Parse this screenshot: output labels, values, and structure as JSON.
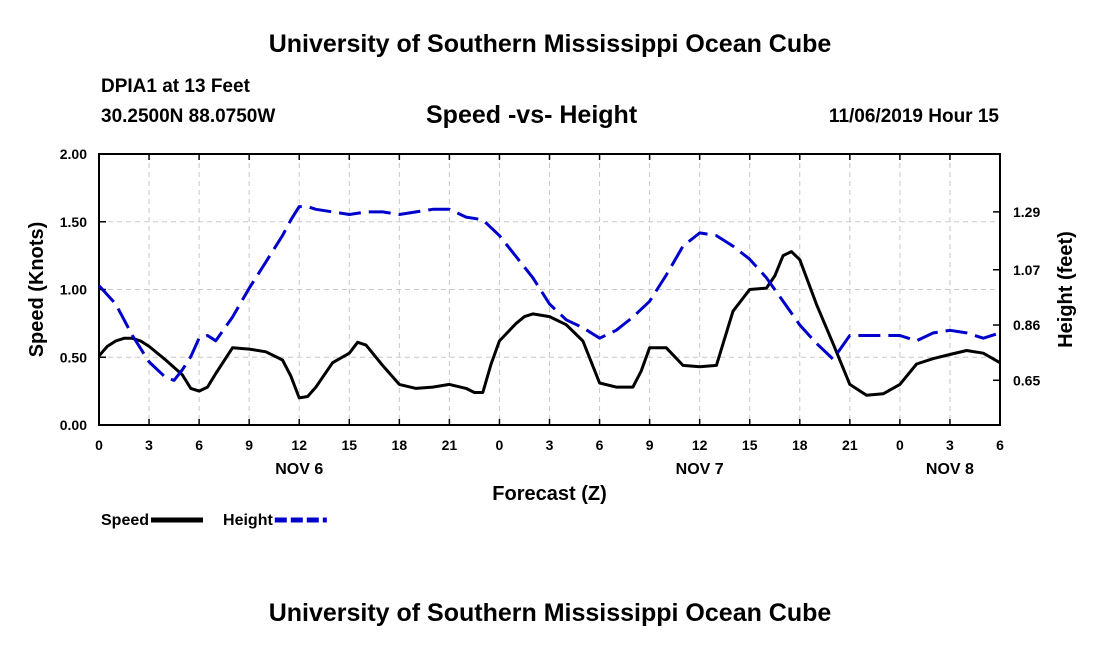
{
  "header": {
    "title": "University of Southern Mississippi Ocean Cube",
    "station_name": "DPIA1 at 13 Feet",
    "station_coords": "30.2500N 88.0750W",
    "chart_title": "Speed -vs- Height",
    "forecast_stamp": "11/06/2019 Hour 15"
  },
  "footer": {
    "title": "University of Southern Mississippi Ocean Cube"
  },
  "chart_data": {
    "type": "line",
    "title": "Speed -vs- Height",
    "xlabel": "Forecast (Z)",
    "ylabel": "Speed (Knots)",
    "y2label": "Height (feet)",
    "xlim": [
      0,
      54
    ],
    "ylim": [
      0,
      2
    ],
    "y2lim": [
      0.48,
      1.51
    ],
    "grid": true,
    "x_ticks": [
      {
        "x": 0,
        "label": "0"
      },
      {
        "x": 3,
        "label": "3"
      },
      {
        "x": 6,
        "label": "6"
      },
      {
        "x": 9,
        "label": "9"
      },
      {
        "x": 12,
        "label": "12"
      },
      {
        "x": 15,
        "label": "15"
      },
      {
        "x": 18,
        "label": "18"
      },
      {
        "x": 21,
        "label": "21"
      },
      {
        "x": 24,
        "label": "0"
      },
      {
        "x": 27,
        "label": "3"
      },
      {
        "x": 30,
        "label": "6"
      },
      {
        "x": 33,
        "label": "9"
      },
      {
        "x": 36,
        "label": "12"
      },
      {
        "x": 39,
        "label": "15"
      },
      {
        "x": 42,
        "label": "18"
      },
      {
        "x": 45,
        "label": "21"
      },
      {
        "x": 48,
        "label": "0"
      },
      {
        "x": 51,
        "label": "3"
      },
      {
        "x": 54,
        "label": "6"
      }
    ],
    "date_labels": [
      {
        "x": 12,
        "label": "NOV 6"
      },
      {
        "x": 36,
        "label": "NOV 7"
      },
      {
        "x": 51,
        "label": "NOV 8"
      }
    ],
    "y_ticks": [
      {
        "value": 0,
        "label": "0.00"
      },
      {
        "value": 0.5,
        "label": "0.50"
      },
      {
        "value": 1.0,
        "label": "1.00"
      },
      {
        "value": 1.5,
        "label": "1.50"
      },
      {
        "value": 2.0,
        "label": "2.00"
      }
    ],
    "y2_ticks": [
      {
        "value": 0.65,
        "label": "0.65"
      },
      {
        "value": 0.86,
        "label": "0.86"
      },
      {
        "value": 1.07,
        "label": "1.07"
      },
      {
        "value": 1.29,
        "label": "1.29"
      }
    ],
    "series": [
      {
        "name": "Speed",
        "axis": "left",
        "color": "#000000",
        "dash": "solid",
        "x": [
          0,
          0.5,
          1,
          1.5,
          2,
          2.5,
          3,
          4,
          5,
          5.5,
          6,
          6.5,
          7,
          8,
          9,
          10,
          11,
          11.5,
          12,
          12.5,
          13,
          14,
          15,
          15.5,
          16,
          17,
          18,
          19,
          20,
          21,
          22,
          22.5,
          23,
          23.5,
          24,
          25,
          25.5,
          26,
          27,
          28,
          29,
          30,
          31,
          32,
          32.5,
          33,
          34,
          35,
          36,
          37,
          38,
          39,
          40,
          40.5,
          41,
          41.5,
          42,
          43,
          44,
          45,
          46,
          47,
          48,
          49,
          50,
          51,
          52,
          53,
          54
        ],
        "values": [
          0.51,
          0.58,
          0.62,
          0.64,
          0.64,
          0.62,
          0.58,
          0.48,
          0.37,
          0.27,
          0.25,
          0.28,
          0.38,
          0.57,
          0.56,
          0.54,
          0.48,
          0.36,
          0.2,
          0.21,
          0.28,
          0.46,
          0.53,
          0.61,
          0.59,
          0.44,
          0.3,
          0.27,
          0.28,
          0.3,
          0.27,
          0.24,
          0.24,
          0.45,
          0.62,
          0.75,
          0.8,
          0.82,
          0.8,
          0.74,
          0.62,
          0.31,
          0.28,
          0.28,
          0.4,
          0.57,
          0.57,
          0.44,
          0.43,
          0.44,
          0.84,
          1.0,
          1.01,
          1.1,
          1.25,
          1.28,
          1.22,
          0.89,
          0.6,
          0.3,
          0.22,
          0.23,
          0.3,
          0.45,
          0.49,
          0.52,
          0.55,
          0.53,
          0.46
        ]
      },
      {
        "name": "Height",
        "axis": "right",
        "color": "#0000cc",
        "dash": "dashed",
        "x": [
          0,
          1,
          2,
          3,
          4,
          4.5,
          5,
          5.5,
          6,
          6.5,
          7,
          8,
          9,
          10,
          11,
          11.5,
          12,
          12.5,
          13,
          14,
          15,
          16,
          17,
          18,
          19,
          20,
          21,
          22,
          23,
          24,
          25,
          26,
          27,
          28,
          29,
          30,
          31,
          32,
          33,
          34,
          35,
          36,
          37,
          38,
          39,
          40,
          41,
          42,
          43,
          44,
          45,
          46,
          47,
          48,
          49,
          50,
          51,
          52,
          53,
          54
        ],
        "values": [
          1.01,
          0.94,
          0.82,
          0.72,
          0.66,
          0.65,
          0.69,
          0.74,
          0.81,
          0.82,
          0.8,
          0.89,
          1.0,
          1.1,
          1.2,
          1.26,
          1.31,
          1.31,
          1.3,
          1.29,
          1.28,
          1.29,
          1.29,
          1.28,
          1.29,
          1.3,
          1.3,
          1.27,
          1.26,
          1.2,
          1.12,
          1.04,
          0.94,
          0.88,
          0.85,
          0.81,
          0.84,
          0.89,
          0.95,
          1.05,
          1.16,
          1.21,
          1.2,
          1.16,
          1.11,
          1.04,
          0.95,
          0.86,
          0.79,
          0.73,
          0.82,
          0.82,
          0.82,
          0.82,
          0.8,
          0.83,
          0.84,
          0.83,
          0.81,
          0.83
        ]
      }
    ],
    "legend": {
      "placement": "bottom-left",
      "items": [
        {
          "label": "Speed",
          "color": "#000000",
          "dash": "solid"
        },
        {
          "label": "Height",
          "color": "#0000cc",
          "dash": "dashed"
        }
      ]
    }
  }
}
